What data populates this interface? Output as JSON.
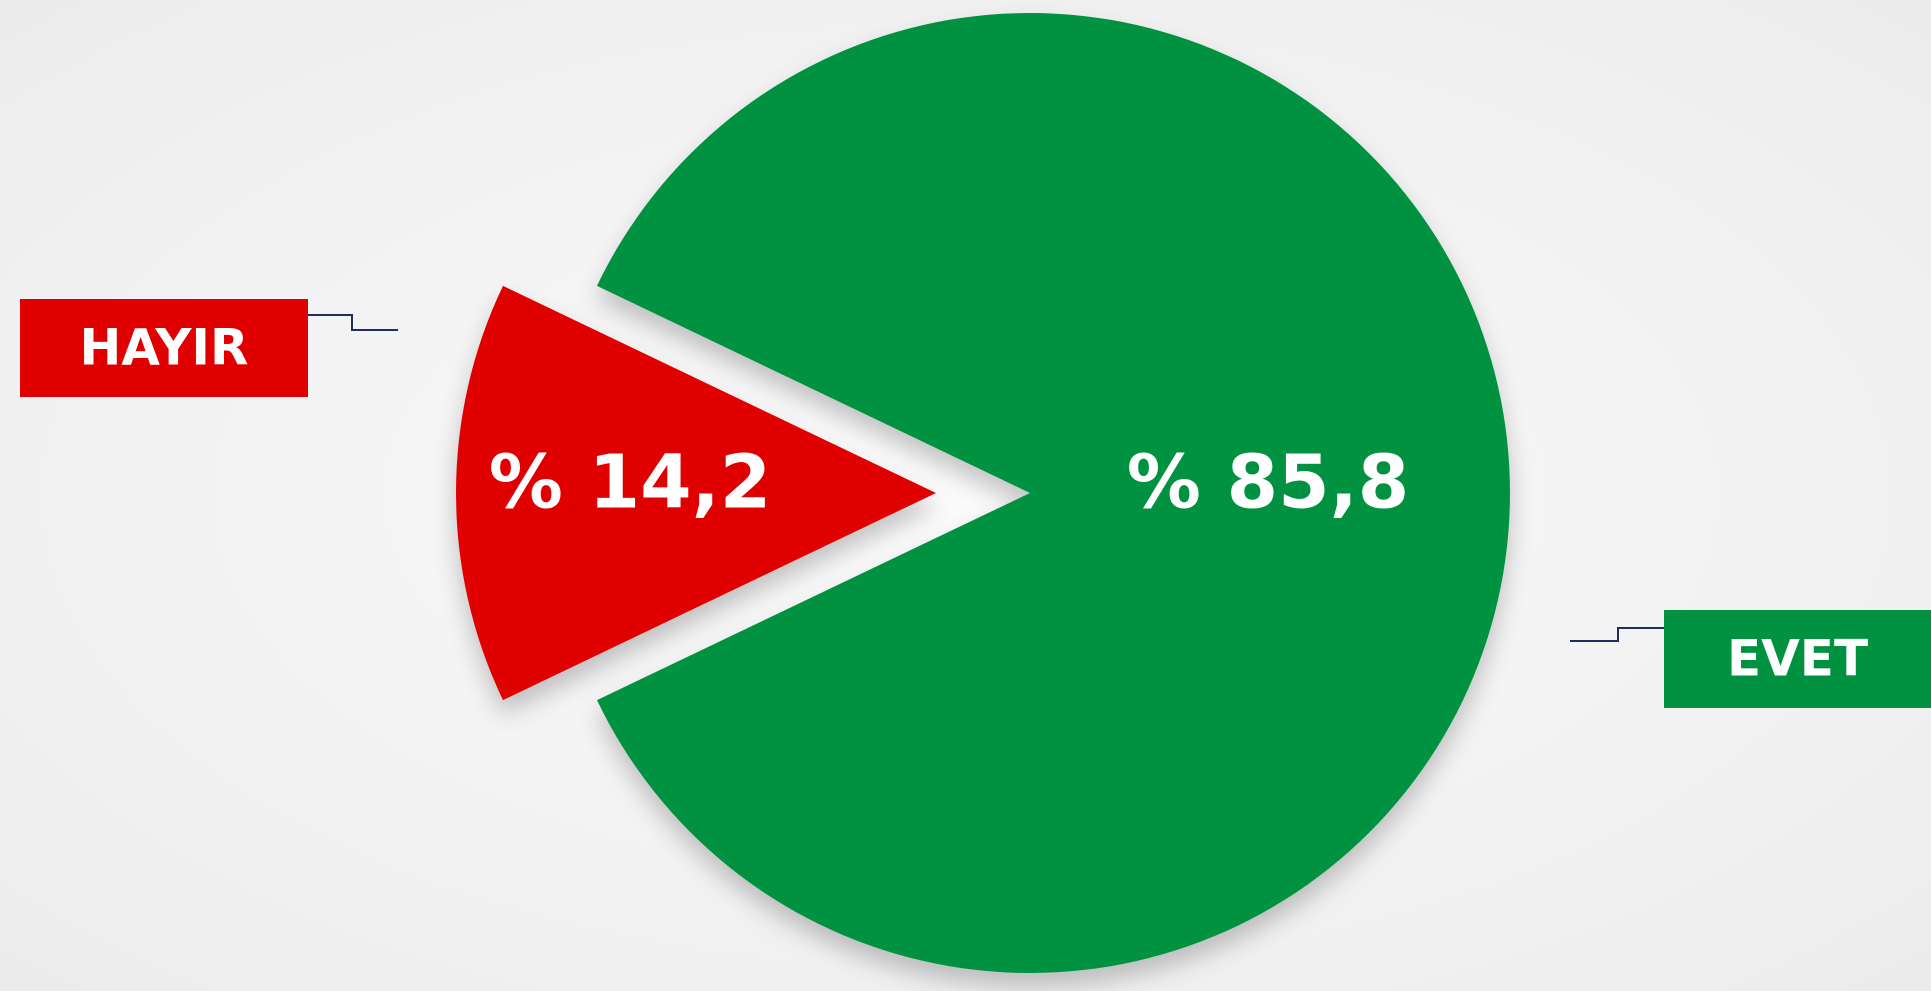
{
  "chart_data": {
    "type": "pie",
    "categories": [
      "HAYIR",
      "EVET"
    ],
    "values": [
      14.2,
      85.8
    ],
    "value_labels": [
      "% 14,2",
      "% 85,8"
    ],
    "colors": [
      "#e00000",
      "#009240"
    ]
  }
}
